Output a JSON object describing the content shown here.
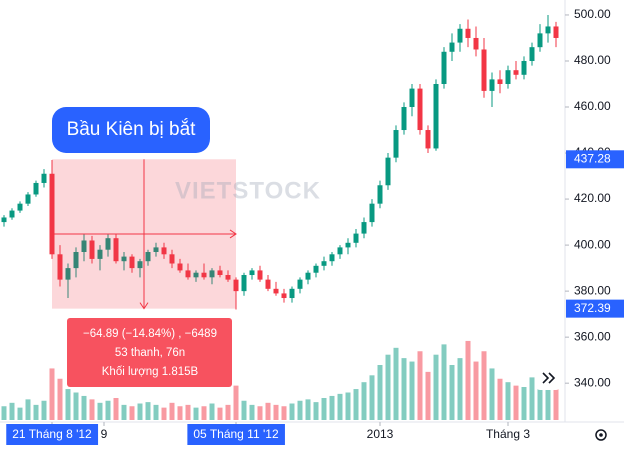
{
  "chart_data": {
    "type": "candlestick",
    "watermark": "VIETSTOCK",
    "annotation": "Bầu Kiên bị bắt",
    "tooltip": [
      "−64.89 (−14.84%) , −6489",
      "53 thanh, 76n",
      "Khối lượng 1.815B"
    ],
    "up_color": "#089981",
    "down_color": "#f23645",
    "label_color": "#2962ff",
    "ylim": [
      324,
      506.5
    ],
    "xlim": [
      -0.5,
      70.5
    ],
    "vlim": [
      0,
      160
    ],
    "yticks": [
      {
        "value": 340,
        "label": "340.00"
      },
      {
        "value": 360,
        "label": "360.00"
      },
      {
        "value": 380,
        "label": "380.00"
      },
      {
        "value": 400,
        "label": "400.00"
      },
      {
        "value": 420,
        "label": "420.00"
      },
      {
        "value": 440,
        "label": "440.00"
      },
      {
        "value": 460,
        "label": "460.00"
      },
      {
        "value": 480,
        "label": "480.00"
      },
      {
        "value": 500,
        "label": "500.00"
      }
    ],
    "price_labels": [
      437.28,
      372.39
    ],
    "xticks": [
      {
        "value": 6,
        "label": "21 Tháng 8 '12"
      },
      {
        "value": 12.5,
        "label": "9"
      },
      {
        "value": 29,
        "label": "05 Tháng 11 '12"
      },
      {
        "value": 47,
        "label": "2013"
      },
      {
        "value": 63,
        "label": "Tháng 3"
      }
    ],
    "candles": [
      [
        410,
        413,
        408,
        412
      ],
      [
        412,
        416,
        411,
        415
      ],
      [
        415,
        419,
        414,
        418
      ],
      [
        418,
        423,
        417,
        422
      ],
      [
        422,
        428,
        421,
        427
      ],
      [
        427,
        433,
        425,
        431
      ],
      [
        431,
        437,
        394,
        396
      ],
      [
        396,
        400,
        382,
        385
      ],
      [
        385,
        392,
        377,
        390
      ],
      [
        390,
        399,
        386,
        397
      ],
      [
        397,
        405,
        393,
        402
      ],
      [
        402,
        404,
        392,
        394
      ],
      [
        394,
        400,
        389,
        398
      ],
      [
        398,
        405,
        395,
        403
      ],
      [
        403,
        405,
        392,
        393
      ],
      [
        393,
        397,
        389,
        395
      ],
      [
        395,
        396,
        388,
        390
      ],
      [
        390,
        394,
        386,
        393
      ],
      [
        393,
        398,
        391,
        397
      ],
      [
        397,
        401,
        395,
        399
      ],
      [
        399,
        401,
        394,
        396
      ],
      [
        396,
        398,
        390,
        392
      ],
      [
        392,
        394,
        388,
        389
      ],
      [
        389,
        392,
        385,
        386
      ],
      [
        386,
        389,
        384,
        388
      ],
      [
        388,
        392,
        385,
        386
      ],
      [
        386,
        390,
        383,
        389
      ],
      [
        389,
        391,
        386,
        387
      ],
      [
        387,
        389,
        384,
        385
      ],
      [
        385,
        386,
        372,
        380
      ],
      [
        380,
        388,
        378,
        387
      ],
      [
        387,
        390,
        385,
        389
      ],
      [
        389,
        391,
        384,
        385
      ],
      [
        385,
        387,
        380,
        381
      ],
      [
        381,
        384,
        378,
        379
      ],
      [
        379,
        381,
        375,
        377
      ],
      [
        377,
        382,
        375,
        381
      ],
      [
        381,
        386,
        379,
        385
      ],
      [
        385,
        389,
        383,
        388
      ],
      [
        388,
        392,
        386,
        391
      ],
      [
        391,
        395,
        389,
        393
      ],
      [
        393,
        397,
        391,
        396
      ],
      [
        396,
        400,
        394,
        399
      ],
      [
        399,
        403,
        396,
        401
      ],
      [
        401,
        407,
        399,
        405
      ],
      [
        405,
        412,
        403,
        410
      ],
      [
        410,
        420,
        408,
        418
      ],
      [
        418,
        428,
        416,
        426
      ],
      [
        426,
        440,
        424,
        438
      ],
      [
        438,
        452,
        436,
        450
      ],
      [
        450,
        462,
        448,
        460
      ],
      [
        460,
        470,
        456,
        468
      ],
      [
        468,
        470,
        448,
        450
      ],
      [
        450,
        452,
        440,
        442
      ],
      [
        442,
        472,
        441,
        470
      ],
      [
        470,
        486,
        468,
        484
      ],
      [
        484,
        492,
        480,
        488
      ],
      [
        488,
        496,
        484,
        494
      ],
      [
        494,
        498,
        486,
        490
      ],
      [
        490,
        495,
        482,
        485
      ],
      [
        485,
        490,
        464,
        467
      ],
      [
        467,
        475,
        460,
        472
      ],
      [
        472,
        476,
        466,
        470
      ],
      [
        470,
        478,
        468,
        476
      ],
      [
        476,
        480,
        472,
        474
      ],
      [
        474,
        482,
        472,
        480
      ],
      [
        480,
        488,
        478,
        486
      ],
      [
        486,
        496,
        484,
        492
      ],
      [
        492,
        500,
        488,
        495
      ],
      [
        495,
        497,
        486,
        490
      ]
    ],
    "volumes": [
      20,
      25,
      18,
      30,
      22,
      28,
      75,
      60,
      45,
      40,
      35,
      30,
      25,
      28,
      32,
      22,
      20,
      24,
      26,
      22,
      18,
      25,
      20,
      22,
      18,
      20,
      24,
      18,
      22,
      50,
      28,
      22,
      20,
      25,
      22,
      20,
      24,
      28,
      30,
      26,
      32,
      35,
      38,
      40,
      45,
      55,
      65,
      80,
      95,
      105,
      90,
      85,
      100,
      70,
      95,
      110,
      80,
      90,
      115,
      85,
      100,
      75,
      60,
      55,
      50,
      48,
      62,
      58,
      52,
      45
    ]
  }
}
